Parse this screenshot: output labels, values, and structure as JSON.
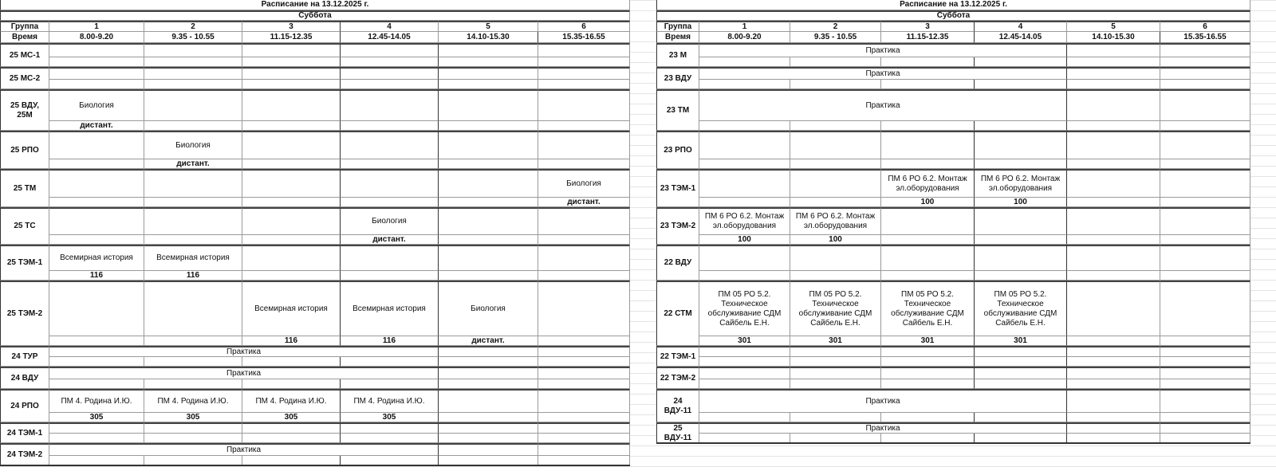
{
  "left": {
    "title": "Расписание на 13.12.2025 г.",
    "day": "Суббота",
    "group_label": "Группа",
    "time_label": "Время",
    "periods": [
      "1",
      "2",
      "3",
      "4",
      "5",
      "6"
    ],
    "times": [
      "8.00-9.20",
      "9.35 - 10.55",
      "11.15-12.35",
      "12.45-14.05",
      "14.10-15.30",
      "15.35-16.55"
    ],
    "rows": [
      {
        "group": "25 МС-1",
        "top": [
          "",
          "",
          "",
          "",
          "",
          ""
        ],
        "bottom": [
          "",
          "",
          "",
          "",
          "",
          ""
        ]
      },
      {
        "group": "25 МС-2",
        "top": [
          "",
          "",
          "",
          "",
          "",
          ""
        ],
        "bottom": [
          "",
          "",
          "",
          "",
          "",
          ""
        ]
      },
      {
        "group": "25 ВДУ, 25М",
        "top": [
          "Биология",
          "",
          "",
          "",
          "",
          ""
        ],
        "bottom": [
          "дистант.",
          "",
          "",
          "",
          "",
          ""
        ]
      },
      {
        "group": "25 РПО",
        "top": [
          "",
          "Биология",
          "",
          "",
          "",
          ""
        ],
        "bottom": [
          "",
          "дистант.",
          "",
          "",
          "",
          ""
        ]
      },
      {
        "group": "25 ТМ",
        "top": [
          "",
          "",
          "",
          "",
          "",
          "Биология"
        ],
        "bottom": [
          "",
          "",
          "",
          "",
          "",
          "дистант."
        ]
      },
      {
        "group": "25 ТС",
        "top": [
          "",
          "",
          "",
          "Биология",
          "",
          ""
        ],
        "bottom": [
          "",
          "",
          "",
          "дистант.",
          "",
          ""
        ]
      },
      {
        "group": "25 ТЭМ-1",
        "top": [
          "Всемирная история",
          "Всемирная история",
          "",
          "",
          "",
          ""
        ],
        "bottom": [
          "116",
          "116",
          "",
          "",
          "",
          ""
        ]
      },
      {
        "group": "25 ТЭМ-2",
        "top": [
          "",
          "",
          "Всемирная история",
          "Всемирная история",
          "Биология",
          ""
        ],
        "bottom": [
          "",
          "",
          "116",
          "116",
          "дистант.",
          ""
        ]
      },
      {
        "group": "24 ТУР",
        "merged": "Практика",
        "top": [
          "",
          "",
          ""
        ],
        "bottom": [
          "",
          "",
          "",
          "",
          "",
          ""
        ]
      },
      {
        "group": "24 ВДУ",
        "merged": "Практика",
        "top": [
          "",
          "",
          ""
        ],
        "bottom": [
          "",
          "",
          "",
          "",
          "",
          ""
        ]
      },
      {
        "group": "24 РПО",
        "top": [
          "ПМ 4. Родина И.Ю.",
          "ПМ 4. Родина И.Ю.",
          "ПМ 4. Родина И.Ю.",
          "ПМ 4. Родина И.Ю.",
          "",
          ""
        ],
        "bottom": [
          "305",
          "305",
          "305",
          "305",
          "",
          ""
        ]
      },
      {
        "group": "24 ТЭМ-1",
        "top": [
          "",
          "",
          "",
          "",
          "",
          ""
        ],
        "bottom": [
          "",
          "",
          "",
          "",
          "",
          ""
        ]
      },
      {
        "group": "24 ТЭМ-2",
        "merged": "Практика",
        "top": [
          "",
          "",
          ""
        ],
        "bottom": [
          "",
          "",
          "",
          "",
          "",
          ""
        ]
      }
    ]
  },
  "right": {
    "title": "Расписание на 13.12.2025 г.",
    "day": "Суббота",
    "group_label": "Группа",
    "time_label": "Время",
    "periods": [
      "1",
      "2",
      "3",
      "4",
      "5",
      "6"
    ],
    "times": [
      "8.00-9.20",
      "9.35 - 10.55",
      "11.15-12.35",
      "12.45-14.05",
      "14.10-15.30",
      "15.35-16.55"
    ],
    "rows": [
      {
        "group": "23 М",
        "merged": "Практика",
        "top": [
          "",
          "",
          ""
        ],
        "bottom": [
          "",
          "",
          "",
          "",
          "",
          ""
        ]
      },
      {
        "group": "23 ВДУ",
        "merged": "Практика",
        "top": [
          "",
          "",
          ""
        ],
        "bottom": [
          "",
          "",
          "",
          "",
          "",
          ""
        ]
      },
      {
        "group": "23 ТМ",
        "merged": "Практика",
        "top": [
          "",
          "",
          ""
        ],
        "bottom": [
          "",
          "",
          "",
          "",
          "",
          ""
        ]
      },
      {
        "group": "23 РПО",
        "top": [
          "",
          "",
          "",
          "",
          "",
          ""
        ],
        "bottom": [
          "",
          "",
          "",
          "",
          "",
          ""
        ]
      },
      {
        "group": "23 ТЭМ-1",
        "top": [
          "",
          "",
          "ПМ 6 РО 6.2. Монтаж эл.оборудования",
          "ПМ 6 РО 6.2. Монтаж эл.оборудования",
          "",
          ""
        ],
        "bottom": [
          "",
          "",
          "100",
          "100",
          "",
          ""
        ]
      },
      {
        "group": "23 ТЭМ-2",
        "top": [
          "ПМ 6 РО 6.2. Монтаж эл.оборудования",
          "ПМ 6 РО 6.2. Монтаж эл.оборудования",
          "",
          "",
          "",
          ""
        ],
        "bottom": [
          "100",
          "100",
          "",
          "",
          "",
          ""
        ]
      },
      {
        "group": "22 ВДУ",
        "top": [
          "",
          "",
          "",
          "",
          "",
          ""
        ],
        "bottom": [
          "",
          "",
          "",
          "",
          "",
          ""
        ]
      },
      {
        "group": "22 СТМ",
        "top": [
          "ПМ 05 РО 5.2. Техническое обслуживание СДМ Сайбель Е.Н.",
          "ПМ 05 РО 5.2. Техническое обслуживание СДМ Сайбель Е.Н.",
          "ПМ 05 РО 5.2. Техническое обслуживание СДМ Сайбель Е.Н.",
          "ПМ 05 РО 5.2. Техническое обслуживание СДМ Сайбель Е.Н.",
          "",
          ""
        ],
        "bottom": [
          "301",
          "301",
          "301",
          "301",
          "",
          ""
        ]
      },
      {
        "group": "22 ТЭМ-1",
        "top": [
          "",
          "",
          "",
          "",
          "",
          ""
        ],
        "bottom": [
          "",
          "",
          "",
          "",
          "",
          ""
        ]
      },
      {
        "group": "22 ТЭМ-2",
        "top": [
          "",
          "",
          "",
          "",
          "",
          ""
        ],
        "bottom": [
          "",
          "",
          "",
          "",
          "",
          ""
        ]
      },
      {
        "group": "24 ВДУ-11",
        "merged": "Практика",
        "top": [
          "",
          "",
          ""
        ],
        "bottom": [
          "",
          "",
          "",
          "",
          "",
          ""
        ]
      },
      {
        "group": "25 ВДУ-11",
        "merged": "Практика",
        "top": [
          "",
          "",
          ""
        ],
        "bottom": [
          "",
          "",
          "",
          "",
          "",
          ""
        ]
      }
    ]
  }
}
